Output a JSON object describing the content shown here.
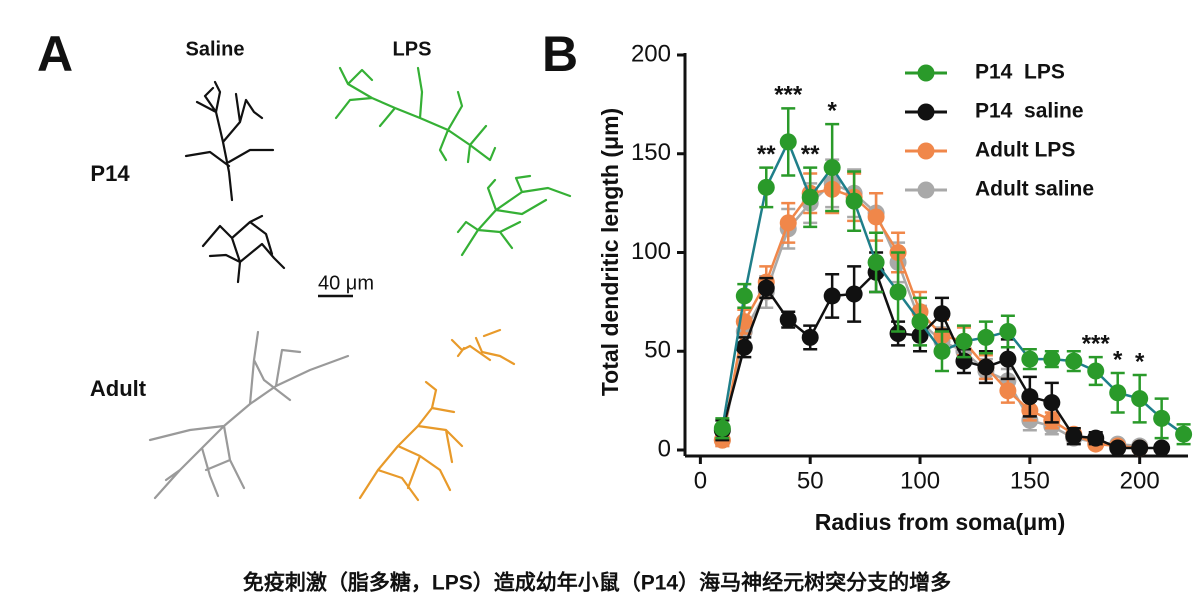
{
  "panel_a": {
    "label": "A",
    "columns": [
      "Saline",
      "LPS"
    ],
    "rows": [
      "P14",
      "Adult"
    ],
    "scale_bar": "40 μm"
  },
  "chart_data": {
    "type": "line",
    "panel_label": "B",
    "x_label": "Radius from soma(μm)",
    "y_label": "Total dendritic length (μm)",
    "x": [
      10,
      20,
      30,
      40,
      50,
      60,
      70,
      80,
      90,
      100,
      110,
      120,
      130,
      140,
      150,
      160,
      170,
      180,
      190,
      200,
      210,
      220
    ],
    "xlim": [
      -7,
      222
    ],
    "xticks": [
      0,
      50,
      100,
      150,
      200
    ],
    "ylim": [
      0,
      200
    ],
    "yticks": [
      0,
      50,
      100,
      150,
      200
    ],
    "legend": "upper right",
    "series": [
      {
        "name": "Adult saline",
        "color": "#a9a9a9",
        "values": [
          5,
          60,
          80,
          112,
          125,
          135,
          130,
          120,
          95,
          65,
          55,
          50,
          40,
          35,
          15,
          12,
          6,
          4,
          3,
          2,
          null,
          null
        ],
        "errors": [
          3,
          6,
          8,
          10,
          10,
          12,
          12,
          10,
          10,
          8,
          7,
          6,
          6,
          6,
          5,
          4,
          3,
          2,
          1,
          1,
          null,
          null
        ]
      },
      {
        "name": "Adult LPS",
        "color": "#f0874a",
        "values": [
          5,
          65,
          85,
          115,
          130,
          132,
          128,
          118,
          100,
          70,
          58,
          55,
          42,
          30,
          20,
          15,
          8,
          3,
          2,
          1,
          null,
          null
        ],
        "errors": [
          3,
          6,
          8,
          10,
          10,
          12,
          12,
          12,
          10,
          10,
          8,
          7,
          6,
          6,
          5,
          4,
          3,
          2,
          1,
          1,
          null,
          null
        ]
      },
      {
        "name": "P14  saline",
        "color": "#111111",
        "values": [
          10,
          52,
          82,
          66,
          57,
          78,
          79,
          90,
          59,
          58,
          69,
          45,
          42,
          46,
          27,
          24,
          7,
          6,
          1,
          1,
          1,
          null
        ],
        "errors": [
          5,
          5,
          5,
          4,
          6,
          11,
          14,
          10,
          6,
          8,
          8,
          6,
          8,
          10,
          10,
          10,
          4,
          3,
          1,
          1,
          1,
          null
        ]
      },
      {
        "name": "P14  LPS",
        "color": "#2a9a2a",
        "line_color": "#1f7f8a",
        "values": [
          11,
          78,
          133,
          156,
          128,
          143,
          126,
          95,
          80,
          65,
          50,
          55,
          57,
          60,
          46,
          46,
          45,
          40,
          29,
          26,
          16,
          8
        ],
        "errors": [
          5,
          6,
          10,
          17,
          15,
          22,
          15,
          15,
          20,
          12,
          10,
          8,
          8,
          8,
          5,
          4,
          5,
          7,
          10,
          12,
          10,
          5
        ]
      }
    ],
    "significance": [
      null,
      null,
      "**",
      "***",
      "**",
      "*",
      null,
      null,
      null,
      null,
      null,
      null,
      null,
      null,
      null,
      null,
      null,
      "***",
      "*",
      "*",
      null,
      null
    ]
  },
  "caption": "免疫刺激（脂多糖，LPS）造成幼年小鼠（P14）海马神经元树突分支的增多"
}
